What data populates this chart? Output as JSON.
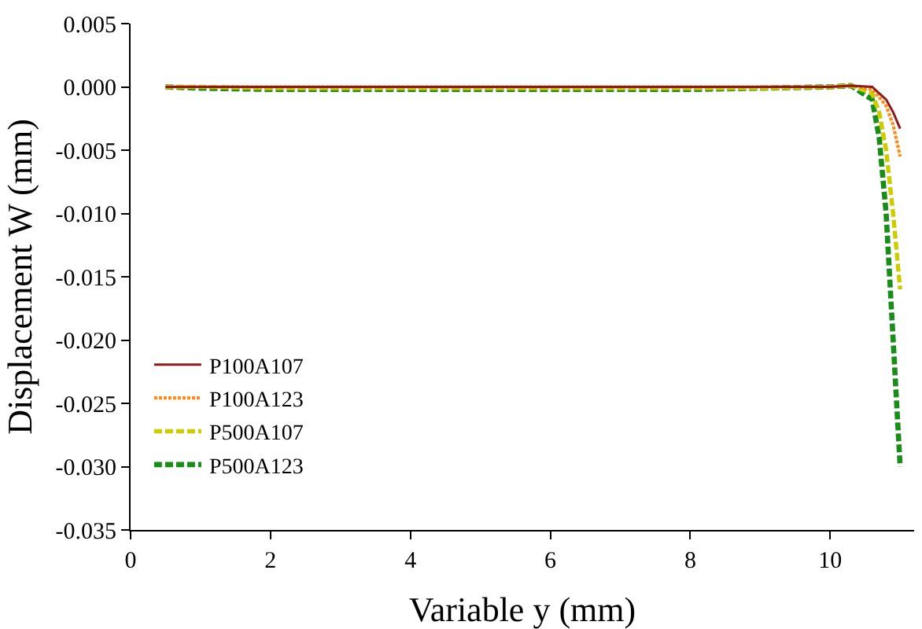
{
  "chart_data": {
    "type": "line",
    "xlabel": "Variable y (mm)",
    "ylabel": "Displacement W (mm)",
    "x": [
      0.5,
      1,
      2,
      3,
      4,
      5,
      6,
      7,
      8,
      9,
      10,
      10.3,
      10.6,
      10.7,
      10.8,
      10.9,
      11.0
    ],
    "series": [
      {
        "name": "P100A107",
        "color": "#8b1a1a",
        "line_style": "solid",
        "values": [
          0,
          0,
          0,
          0,
          0,
          0,
          0,
          0,
          0,
          0,
          0,
          0.0001,
          0,
          -0.0005,
          -0.001,
          -0.002,
          -0.0033
        ]
      },
      {
        "name": "P100A123",
        "color": "#ff8c1a",
        "line_style": "dotted",
        "values": [
          0,
          0,
          0,
          0,
          0,
          0,
          0,
          0,
          0,
          0,
          0,
          0.0001,
          -0.0002,
          -0.0008,
          -0.0015,
          -0.003,
          -0.0055
        ]
      },
      {
        "name": "P500A107",
        "color": "#cccc00",
        "line_style": "dashed",
        "values": [
          0,
          0,
          -0.0001,
          -0.0001,
          -0.0001,
          -0.0001,
          -0.0001,
          -0.0001,
          -0.0001,
          -0.0001,
          0,
          0.0001,
          -0.0005,
          -0.002,
          -0.005,
          -0.01,
          -0.016
        ]
      },
      {
        "name": "P500A123",
        "color": "#1a8c1a",
        "line_style": "dashed",
        "values": [
          0,
          -0.0001,
          -0.0002,
          -0.0002,
          -0.0002,
          -0.0002,
          -0.0002,
          -0.0002,
          -0.0002,
          -0.0001,
          0,
          0.0001,
          -0.001,
          -0.004,
          -0.01,
          -0.02,
          -0.03
        ]
      }
    ],
    "xlim": [
      0,
      11.2
    ],
    "xticks": [
      0,
      2,
      4,
      6,
      8,
      10
    ],
    "ylim": [
      -0.035,
      0.005
    ],
    "yticks": [
      {
        "value": -0.035,
        "label": "-0.035"
      },
      {
        "value": -0.03,
        "label": "-0.030"
      },
      {
        "value": -0.025,
        "label": "-0.025"
      },
      {
        "value": -0.02,
        "label": "-0.020"
      },
      {
        "value": -0.015,
        "label": "-0.015"
      },
      {
        "value": -0.01,
        "label": "-0.010"
      },
      {
        "value": -0.005,
        "label": "-0.005"
      },
      {
        "value": 0,
        "label": "0.000"
      },
      {
        "value": 0.005,
        "label": "0.005"
      }
    ],
    "grid": false,
    "legend": "bottom left",
    "marker": "none"
  }
}
